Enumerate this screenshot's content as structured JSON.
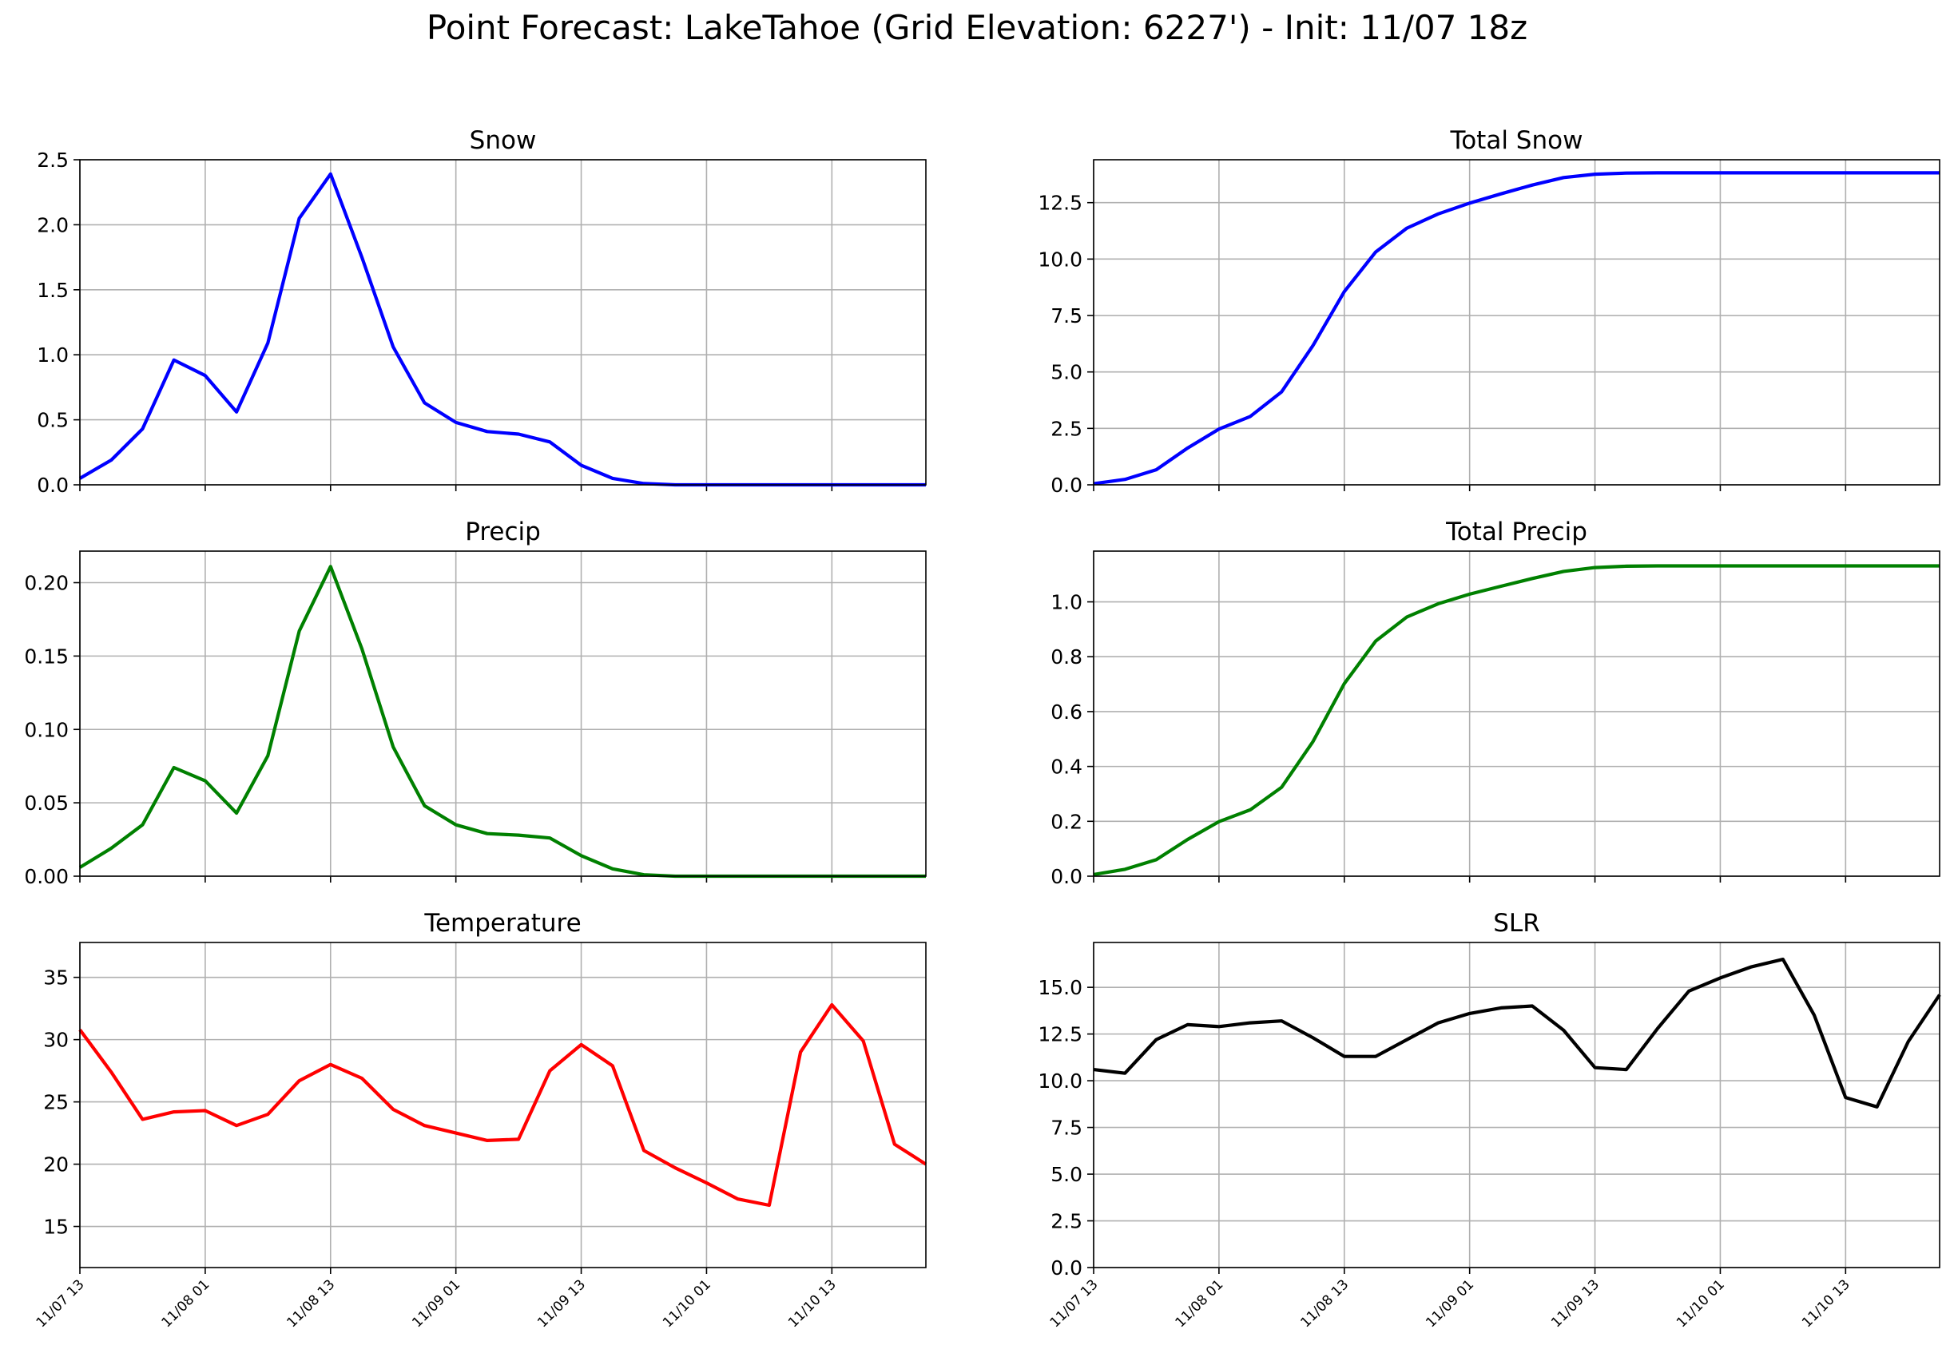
{
  "figure": {
    "title": "Point Forecast: LakeTahoe (Grid Elevation: 6227') - Init: 11/07 18z"
  },
  "x_ticks": [
    "11/07 13",
    "11/08 01",
    "11/08 13",
    "11/09 01",
    "11/09 13",
    "11/10 01",
    "11/10 13"
  ],
  "chart_data": [
    {
      "type": "line",
      "title": "Snow",
      "xlabel": "",
      "ylabel": "",
      "color": "#0000ff",
      "grid": true,
      "x_range": [
        0,
        81
      ],
      "ylim": [
        0,
        2.5
      ],
      "yticks": [
        0.0,
        0.5,
        1.0,
        1.5,
        2.0,
        2.5
      ],
      "ytick_labels": [
        "0.0",
        "0.5",
        "1.0",
        "1.5",
        "2.0",
        "2.5"
      ],
      "xtick_labels_visible": false,
      "values": [
        0.05,
        0.19,
        0.43,
        0.96,
        0.84,
        0.56,
        1.09,
        2.05,
        2.39,
        1.75,
        1.06,
        0.63,
        0.48,
        0.41,
        0.39,
        0.33,
        0.15,
        0.05,
        0.01,
        0.0,
        0.0,
        0.0,
        0.0,
        0.0,
        0.0,
        0.0,
        0.0,
        0.0
      ]
    },
    {
      "type": "line",
      "title": "Total Snow",
      "xlabel": "",
      "ylabel": "",
      "color": "#0000ff",
      "grid": true,
      "x_range": [
        0,
        81
      ],
      "ylim": [
        0,
        14.4
      ],
      "yticks": [
        0.0,
        2.5,
        5.0,
        7.5,
        10.0,
        12.5
      ],
      "ytick_labels": [
        "0.0",
        "2.5",
        "5.0",
        "7.5",
        "10.0",
        "12.5"
      ],
      "xtick_labels_visible": false,
      "values": [
        0.05,
        0.24,
        0.67,
        1.63,
        2.47,
        3.03,
        4.12,
        6.17,
        8.56,
        10.31,
        11.37,
        12.0,
        12.48,
        12.89,
        13.28,
        13.61,
        13.76,
        13.81,
        13.82,
        13.82,
        13.82,
        13.82,
        13.82,
        13.82,
        13.82,
        13.82,
        13.82,
        13.82
      ]
    },
    {
      "type": "line",
      "title": "Precip",
      "xlabel": "",
      "ylabel": "",
      "color": "#008000",
      "grid": true,
      "x_range": [
        0,
        81
      ],
      "ylim": [
        0,
        0.2215
      ],
      "yticks": [
        0.0,
        0.05,
        0.1,
        0.15,
        0.2
      ],
      "ytick_labels": [
        "0.00",
        "0.05",
        "0.10",
        "0.15",
        "0.20"
      ],
      "xtick_labels_visible": false,
      "values": [
        0.006,
        0.019,
        0.035,
        0.074,
        0.065,
        0.043,
        0.082,
        0.167,
        0.211,
        0.155,
        0.088,
        0.048,
        0.035,
        0.029,
        0.028,
        0.026,
        0.014,
        0.005,
        0.001,
        0.0,
        0.0,
        0.0,
        0.0,
        0.0,
        0.0,
        0.0,
        0.0,
        0.0
      ]
    },
    {
      "type": "line",
      "title": "Total Precip",
      "xlabel": "",
      "ylabel": "",
      "color": "#008000",
      "grid": true,
      "x_range": [
        0,
        81
      ],
      "ylim": [
        0,
        1.185
      ],
      "yticks": [
        0.0,
        0.2,
        0.4,
        0.6,
        0.8,
        1.0
      ],
      "ytick_labels": [
        "0.0",
        "0.2",
        "0.4",
        "0.6",
        "0.8",
        "1.0"
      ],
      "xtick_labels_visible": false,
      "values": [
        0.006,
        0.025,
        0.06,
        0.134,
        0.199,
        0.242,
        0.324,
        0.491,
        0.702,
        0.857,
        0.945,
        0.993,
        1.028,
        1.057,
        1.085,
        1.111,
        1.125,
        1.13,
        1.131,
        1.131,
        1.131,
        1.131,
        1.131,
        1.131,
        1.131,
        1.131,
        1.131,
        1.131
      ]
    },
    {
      "type": "line",
      "title": "Temperature",
      "xlabel": "",
      "ylabel": "",
      "color": "#ff0000",
      "grid": true,
      "x_range": [
        0,
        81
      ],
      "ylim": [
        11.7,
        37.8
      ],
      "yticks": [
        15,
        20,
        25,
        30,
        35
      ],
      "ytick_labels": [
        "15",
        "20",
        "25",
        "30",
        "35"
      ],
      "xtick_labels_visible": true,
      "values": [
        30.8,
        27.4,
        23.6,
        24.2,
        24.3,
        23.1,
        24.0,
        26.7,
        28.0,
        26.9,
        24.4,
        23.1,
        22.5,
        21.9,
        22.0,
        27.5,
        29.6,
        27.9,
        21.1,
        19.7,
        18.5,
        17.2,
        16.7,
        29.0,
        32.8,
        29.9,
        21.6,
        20.0
      ]
    },
    {
      "type": "line",
      "title": "SLR",
      "xlabel": "",
      "ylabel": "",
      "color": "#000000",
      "grid": true,
      "x_range": [
        0,
        81
      ],
      "ylim": [
        0,
        17.4
      ],
      "yticks": [
        0.0,
        2.5,
        5.0,
        7.5,
        10.0,
        12.5,
        15.0
      ],
      "ytick_labels": [
        "0.0",
        "2.5",
        "5.0",
        "7.5",
        "10.0",
        "12.5",
        "15.0"
      ],
      "xtick_labels_visible": true,
      "values": [
        10.6,
        10.4,
        12.2,
        13.0,
        12.9,
        13.1,
        13.2,
        12.3,
        11.3,
        11.3,
        12.2,
        13.1,
        13.6,
        13.9,
        14.0,
        12.7,
        10.7,
        10.6,
        12.8,
        14.8,
        15.5,
        16.1,
        16.5,
        13.5,
        9.1,
        8.6,
        12.1,
        14.6
      ]
    }
  ]
}
